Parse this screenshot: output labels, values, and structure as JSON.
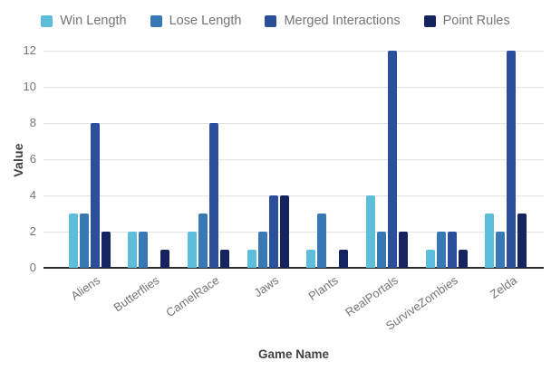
{
  "chart_data": {
    "type": "bar",
    "title": "",
    "xlabel": "Game Name",
    "ylabel": "Value",
    "categories": [
      "Aliens",
      "Butterflies",
      "CamelRace",
      "Jaws",
      "Plants",
      "RealPortals",
      "SurviveZombies",
      "Zelda"
    ],
    "series": [
      {
        "name": "Win Length",
        "color": "#5cbeda",
        "values": [
          3,
          2,
          2,
          1,
          1,
          4,
          1,
          3
        ]
      },
      {
        "name": "Lose Length",
        "color": "#3879b5",
        "values": [
          3,
          2,
          3,
          2,
          3,
          2,
          2,
          2
        ]
      },
      {
        "name": "Merged Interactions",
        "color": "#2c4f9c",
        "values": [
          8,
          0,
          8,
          4,
          0,
          12,
          2,
          12
        ]
      },
      {
        "name": "Point Rules",
        "color": "#162361",
        "values": [
          2,
          1,
          1,
          4,
          1,
          2,
          1,
          3
        ]
      }
    ],
    "ylim": [
      0,
      12
    ],
    "yticks": [
      0,
      2,
      4,
      6,
      8,
      10,
      12
    ],
    "grid": true,
    "legend_position": "top"
  },
  "colors": {
    "background": "#ffffff",
    "gridline": "#e3e3e3",
    "baseline": "#2b2b2b",
    "tick_text": "#757575",
    "axis_title_text": "#424242"
  }
}
